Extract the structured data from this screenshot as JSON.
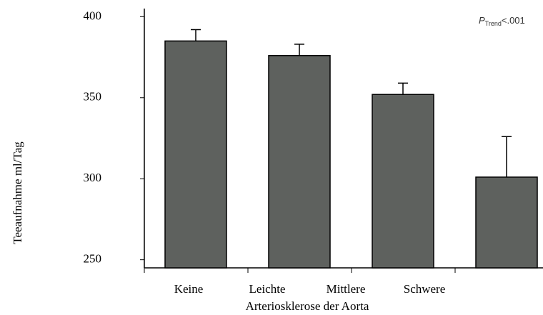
{
  "chart_data": {
    "type": "bar",
    "categories": [
      "Keine",
      "Leichte",
      "Mittlere",
      "Schwere"
    ],
    "values": [
      385,
      376,
      352,
      301
    ],
    "errors": [
      7,
      7,
      7,
      25
    ],
    "color": "#5e615e",
    "ylim": [
      245,
      405
    ],
    "yticks": [
      250,
      300,
      350,
      400
    ],
    "y_label": "Teeaufnahme ml/Tag",
    "x_label": "Arteriosklerose der Aorta",
    "annotation": {
      "p": "P",
      "sub": "Trend",
      "rest": "<.001"
    }
  }
}
